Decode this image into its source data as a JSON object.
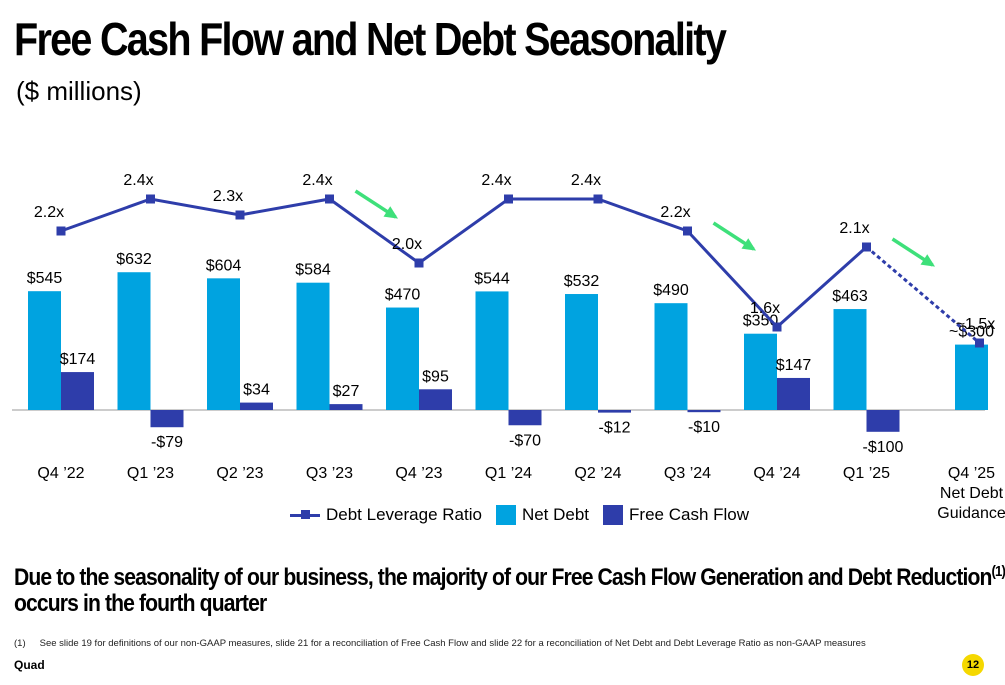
{
  "slide": {
    "title": "Free Cash Flow and Net Debt Seasonality",
    "subtitle": "($ millions)",
    "headline_main": "Due to the seasonality of our business, the majority of our Free Cash Flow Generation and Debt Reduction",
    "headline_sup": "(1)",
    "headline_line2": "occurs in the fourth quarter",
    "footnote_marker": "(1)",
    "footnote_text": "See slide 19 for definitions of our non-GAAP measures, slide 21 for a reconciliation of Free Cash Flow and slide 22 for a reconciliation of Net Debt and Debt Leverage Ratio as non-GAAP measures",
    "brand": "Quad",
    "page_number": "12",
    "page_badge_color": "#F5D800"
  },
  "colors": {
    "net_debt": "#00A3E0",
    "fcf": "#2E3DAA",
    "leverage": "#2E3DAA",
    "arrow": "#3EE07A"
  },
  "chart_data": {
    "type": "bar",
    "categories": [
      "Q4 ’22",
      "Q1 ’23",
      "Q2 ’23",
      "Q3 ’23",
      "Q4 ’23",
      "Q1 ’24",
      "Q2 ’24",
      "Q3 ’24",
      "Q4 ’24",
      "Q1 ’25",
      "Q4 ’25\nNet Debt\nGuidance"
    ],
    "series": [
      {
        "name": "Net Debt",
        "values": [
          545,
          632,
          604,
          584,
          470,
          544,
          532,
          490,
          350,
          463,
          300
        ],
        "labels": [
          "$545",
          "$632",
          "$604",
          "$584",
          "$470",
          "$544",
          "$532",
          "$490",
          "$350",
          "$463",
          "~$300"
        ]
      },
      {
        "name": "Free Cash Flow",
        "values": [
          174,
          -79,
          34,
          27,
          95,
          -70,
          -12,
          -10,
          147,
          -100,
          null
        ],
        "labels": [
          "$174",
          "-$79",
          "$34",
          "$27",
          "$95",
          "-$70",
          "-$12",
          "-$10",
          "$147",
          "-$100",
          ""
        ]
      },
      {
        "name": "Debt Leverage Ratio",
        "type": "line",
        "values": [
          2.2,
          2.4,
          2.3,
          2.4,
          2.0,
          2.4,
          2.4,
          2.2,
          1.6,
          2.1,
          1.5
        ],
        "labels": [
          "2.2x",
          "2.4x",
          "2.3x",
          "2.4x",
          "2.0x",
          "2.4x",
          "2.4x",
          "2.2x",
          "1.6x",
          "2.1x",
          "~1.5x"
        ],
        "dashed_last_segment": true
      }
    ],
    "arrows_after_categories": [
      "Q3 ’23",
      "Q3 ’24",
      "Q1 ’25"
    ],
    "legend": [
      "Debt Leverage Ratio",
      "Net Debt",
      "Free Cash Flow"
    ],
    "legend_position": "bottom",
    "grid": false
  }
}
